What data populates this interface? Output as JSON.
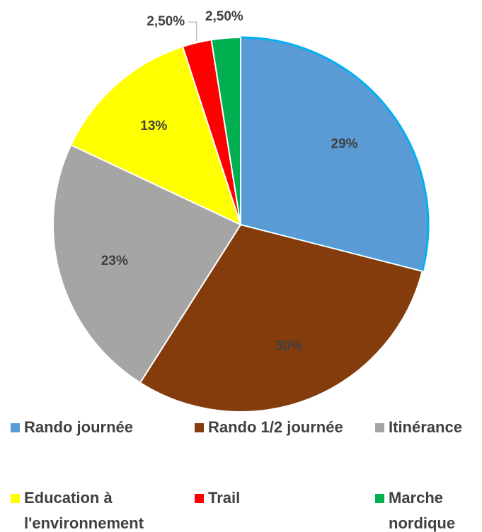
{
  "chart_data": {
    "type": "pie",
    "categories": [
      "Rando journée",
      "Rando 1/2 journée",
      "Itinérance",
      "Education à l'environnement",
      "Trail",
      "Marche nordique"
    ],
    "values": [
      29,
      30,
      23,
      13,
      2.5,
      2.5
    ],
    "value_labels": [
      "29%",
      "30%",
      "23%",
      "13%",
      "2,50%",
      "2,50%"
    ],
    "colors": [
      "#5b9bd5",
      "#843c0c",
      "#a5a5a5",
      "#ffff00",
      "#ff0000",
      "#00b050"
    ]
  }
}
